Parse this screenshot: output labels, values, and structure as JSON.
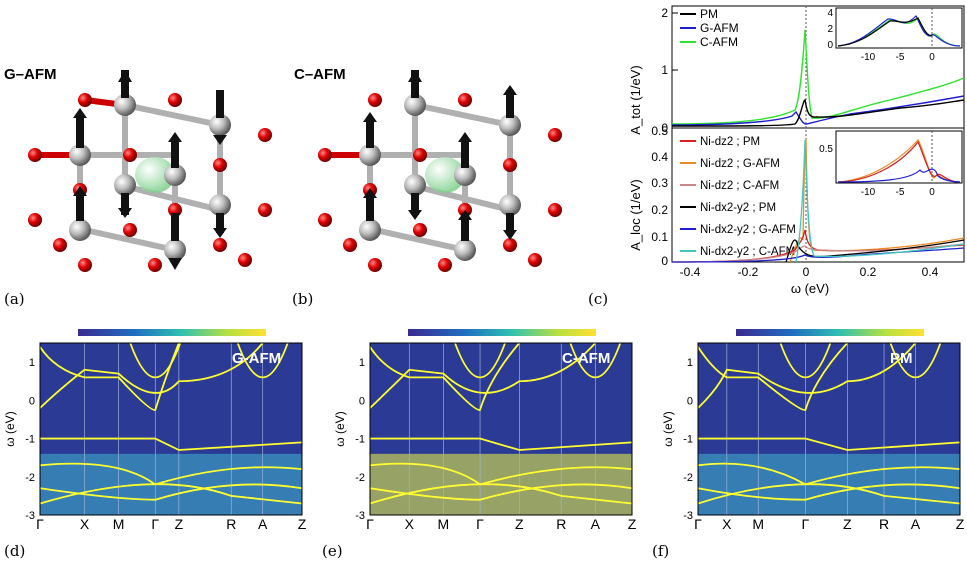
{
  "panel_letters": [
    "(a)",
    "(b)",
    "(c)",
    "(d)",
    "(e)",
    "(f)"
  ],
  "structures": {
    "a_title": "G–AFM",
    "b_title": "C–AFM"
  },
  "colors": {
    "PM": "#000000",
    "G-AFM": "#1f1fd0",
    "C-AFM": "#2ee22e",
    "dz2_PM": "#d42020",
    "dz2_GAFM": "#ee8a20",
    "dz2_CAFM": "#c98888",
    "dx2y2_PM": "#000000",
    "dx2y2_GAFM": "#1f1fd0",
    "dx2y2_CAFM": "#40c8c0",
    "oxygen": "#d40000",
    "nickel": "#aaaaaa",
    "lanthanum": "#9fe0a8",
    "band_bg": "#2e3590",
    "band_line": "#ffff30"
  },
  "dos_top": {
    "ylabel": "A_tot (1/eV)",
    "yticks": [
      "0",
      "1",
      "2"
    ],
    "legend": [
      "PM",
      "G-AFM",
      "C-AFM"
    ],
    "inset_xticks": [
      "-10",
      "-5",
      "0"
    ],
    "inset_yticks": [
      "0",
      "2",
      "4"
    ]
  },
  "dos_bottom": {
    "ylabel": "A_loc (1/eV)",
    "yticks": [
      "0",
      "0.1",
      "0.2",
      "0.3",
      "0.4",
      "0.5"
    ],
    "legend": [
      "Ni-dz2 ; PM",
      "Ni-dz2 ; G-AFM",
      "Ni-dz2 ; C-AFM",
      "Ni-dx2-y2 ; PM",
      "Ni-dx2-y2 ; G-AFM",
      "Ni-dx2-y2 ; C-AFM"
    ],
    "inset_xticks": [
      "-10",
      "-5",
      "0"
    ],
    "inset_yticks": [
      "0.5"
    ],
    "xticks": [
      "-0.4",
      "-0.2",
      "0",
      "0.2",
      "0.4"
    ],
    "xlabel": "ω (eV)"
  },
  "bands": [
    {
      "title": "G-AFM",
      "klabels": [
        "Γ",
        "X",
        "M",
        "Γ",
        "Z",
        "R",
        "A",
        "Z"
      ],
      "yticks": [
        "1",
        "0",
        "-1",
        "-2",
        "-3"
      ],
      "ylabel": "ω (eV)"
    },
    {
      "title": "C-AFM",
      "klabels": [
        "Γ",
        "X",
        "M",
        "Γ",
        "Z",
        "R",
        "A",
        "Z"
      ],
      "yticks": [
        "1",
        "0",
        "-1",
        "-2",
        "-3"
      ],
      "ylabel": "ω (eV)"
    },
    {
      "title": "PM",
      "klabels": [
        "Γ",
        "X",
        "M",
        "Γ",
        "Z",
        "R",
        "A",
        "Z"
      ],
      "yticks": [
        "1",
        "0",
        "-1",
        "-2",
        "-3"
      ],
      "ylabel": "ω (eV)"
    }
  ]
}
